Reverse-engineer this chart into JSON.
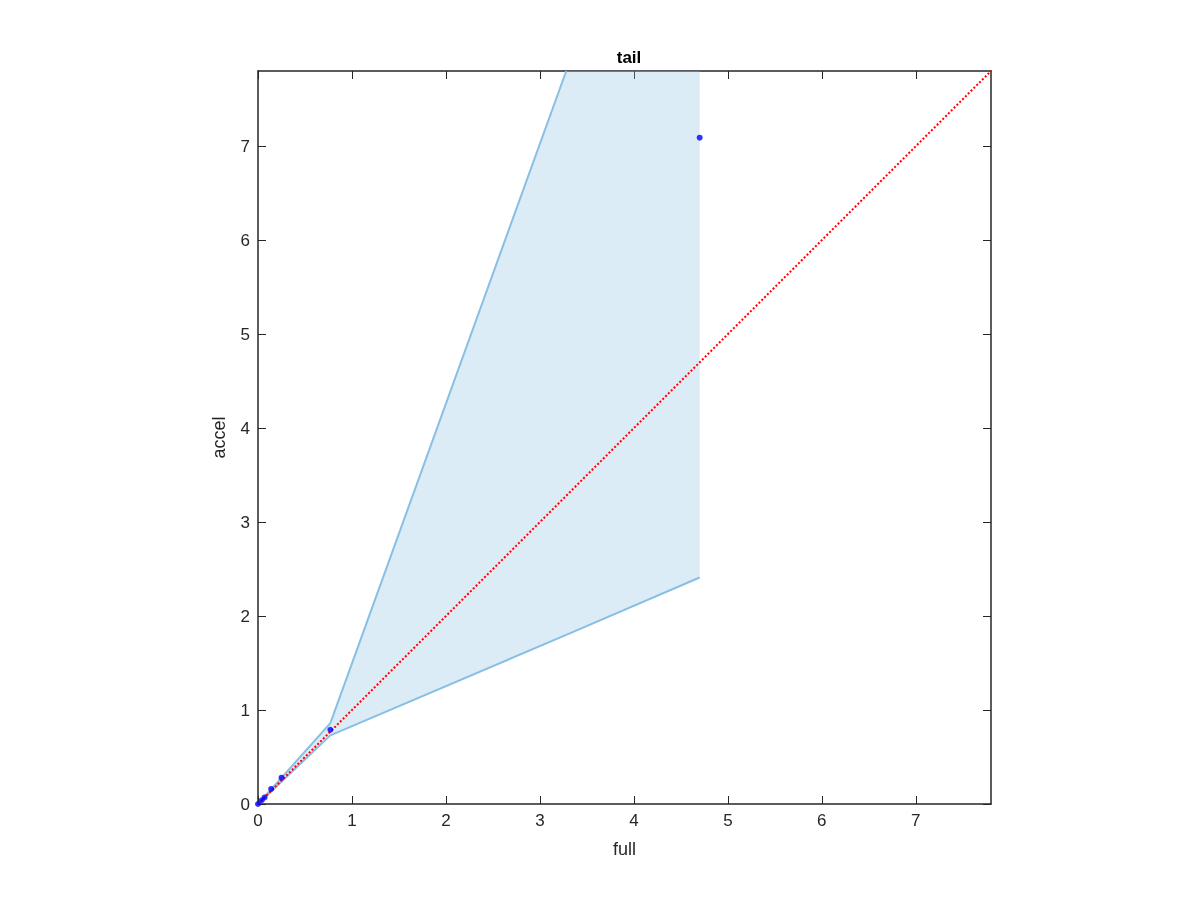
{
  "chart_data": {
    "type": "scatter",
    "title": "tail",
    "xlabel": "full",
    "ylabel": "accel",
    "xlim": [
      0,
      7.8
    ],
    "ylim": [
      0,
      7.8
    ],
    "xticks": [
      0,
      1,
      2,
      3,
      4,
      5,
      6,
      7
    ],
    "yticks": [
      0,
      1,
      2,
      3,
      4,
      5,
      6,
      7
    ],
    "grid": false,
    "marker": "circle",
    "series": [
      {
        "type": "line",
        "color": "#88bfe3",
        "marker": "none",
        "x": [
          0,
          0.77,
          3.28,
          4.7
        ],
        "values": [
          0,
          0.73,
          1.8,
          2.41
        ],
        "lower": [
          0,
          0.73,
          1.8,
          2.41
        ],
        "upper": [
          0,
          0.86,
          7.8,
          7.8
        ]
      },
      {
        "type": "line",
        "color": "#88bfe3",
        "marker": "none",
        "x": [
          0,
          0.77,
          3.28
        ],
        "values": [
          0,
          0.86,
          7.8
        ]
      },
      {
        "type": "line",
        "color": "#ff0000",
        "line_style": "dotted",
        "marker": "none",
        "x": [
          0,
          7.8
        ],
        "values": [
          0,
          7.8
        ]
      },
      {
        "color": "#0000ff",
        "x": [
          0,
          0.04,
          0.07,
          0.14,
          0.25,
          0.77,
          4.7
        ],
        "values": [
          0,
          0.04,
          0.07,
          0.16,
          0.28,
          0.79,
          7.09
        ]
      }
    ]
  }
}
